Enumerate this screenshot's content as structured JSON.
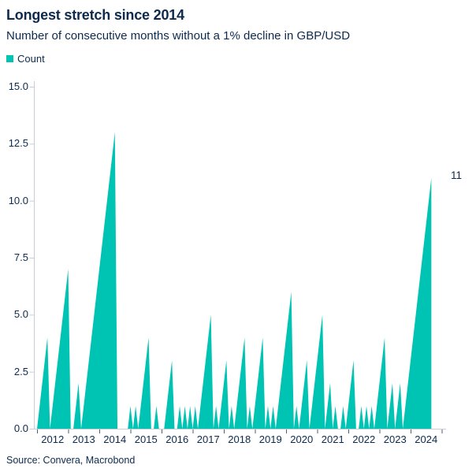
{
  "header": {
    "title": "Longest stretch since 2014",
    "subtitle": "Number of consecutive months without a 1% decline in GBP/USD"
  },
  "legend": {
    "label": "Count"
  },
  "footer": {
    "source": "Source: Convera, Macrobond"
  },
  "colors": {
    "accent": "#00c4b3",
    "text": "#0d2a4d",
    "axis_line": "#c9ced6",
    "tick_mark": "#4f5d6d"
  },
  "chart_data": {
    "type": "area",
    "title": "Longest stretch since 2014",
    "subtitle": "Number of consecutive months without a 1% decline in GBP/USD",
    "series_name": "Count",
    "xlabel": "",
    "ylabel": "",
    "ylim": [
      0,
      15
    ],
    "grid": false,
    "legend_position": "top-left",
    "y_tick_labels": [
      "0.0",
      "2.5",
      "5.0",
      "7.5",
      "10.0",
      "12.5",
      "15.0"
    ],
    "x_tick_years": [
      2012,
      2013,
      2014,
      2015,
      2016,
      2017,
      2018,
      2019,
      2020,
      2021,
      2022,
      2023,
      2024
    ],
    "frequency": "monthly",
    "x_start_month": "2011-12",
    "values": [
      0,
      0,
      1,
      2,
      3,
      4,
      0,
      1,
      2,
      3,
      4,
      5,
      6,
      7,
      0,
      0,
      1,
      2,
      0,
      1,
      2,
      3,
      4,
      5,
      6,
      7,
      8,
      9,
      10,
      11,
      12,
      13,
      0,
      0,
      0,
      0,
      0,
      1,
      0,
      1,
      0,
      1,
      2,
      3,
      4,
      0,
      0,
      1,
      0,
      0,
      0,
      1,
      2,
      3,
      0,
      0,
      1,
      0,
      1,
      0,
      1,
      0,
      1,
      0,
      1,
      2,
      3,
      4,
      5,
      0,
      1,
      0,
      1,
      2,
      3,
      0,
      1,
      0,
      1,
      2,
      3,
      4,
      0,
      1,
      0,
      1,
      2,
      3,
      4,
      0,
      1,
      0,
      1,
      0,
      1,
      2,
      3,
      4,
      5,
      6,
      0,
      1,
      0,
      1,
      2,
      3,
      0,
      1,
      2,
      3,
      4,
      5,
      0,
      1,
      2,
      0,
      1,
      0,
      0,
      1,
      0,
      1,
      2,
      3,
      0,
      0,
      1,
      0,
      1,
      0,
      1,
      0,
      1,
      2,
      3,
      4,
      0,
      1,
      2,
      0,
      1,
      2,
      0,
      1,
      2,
      3,
      4,
      5,
      6,
      7,
      8,
      9,
      10,
      11
    ],
    "peak_values": [
      4,
      7,
      2,
      13,
      1,
      1,
      4,
      1,
      3,
      1,
      1,
      1,
      1,
      5,
      1,
      3,
      1,
      4,
      1,
      4,
      1,
      1,
      6,
      1,
      3,
      5,
      2,
      1,
      1,
      3,
      1,
      1,
      1,
      4,
      2,
      2,
      11
    ],
    "annotation": {
      "text": "11",
      "value": 11
    }
  }
}
